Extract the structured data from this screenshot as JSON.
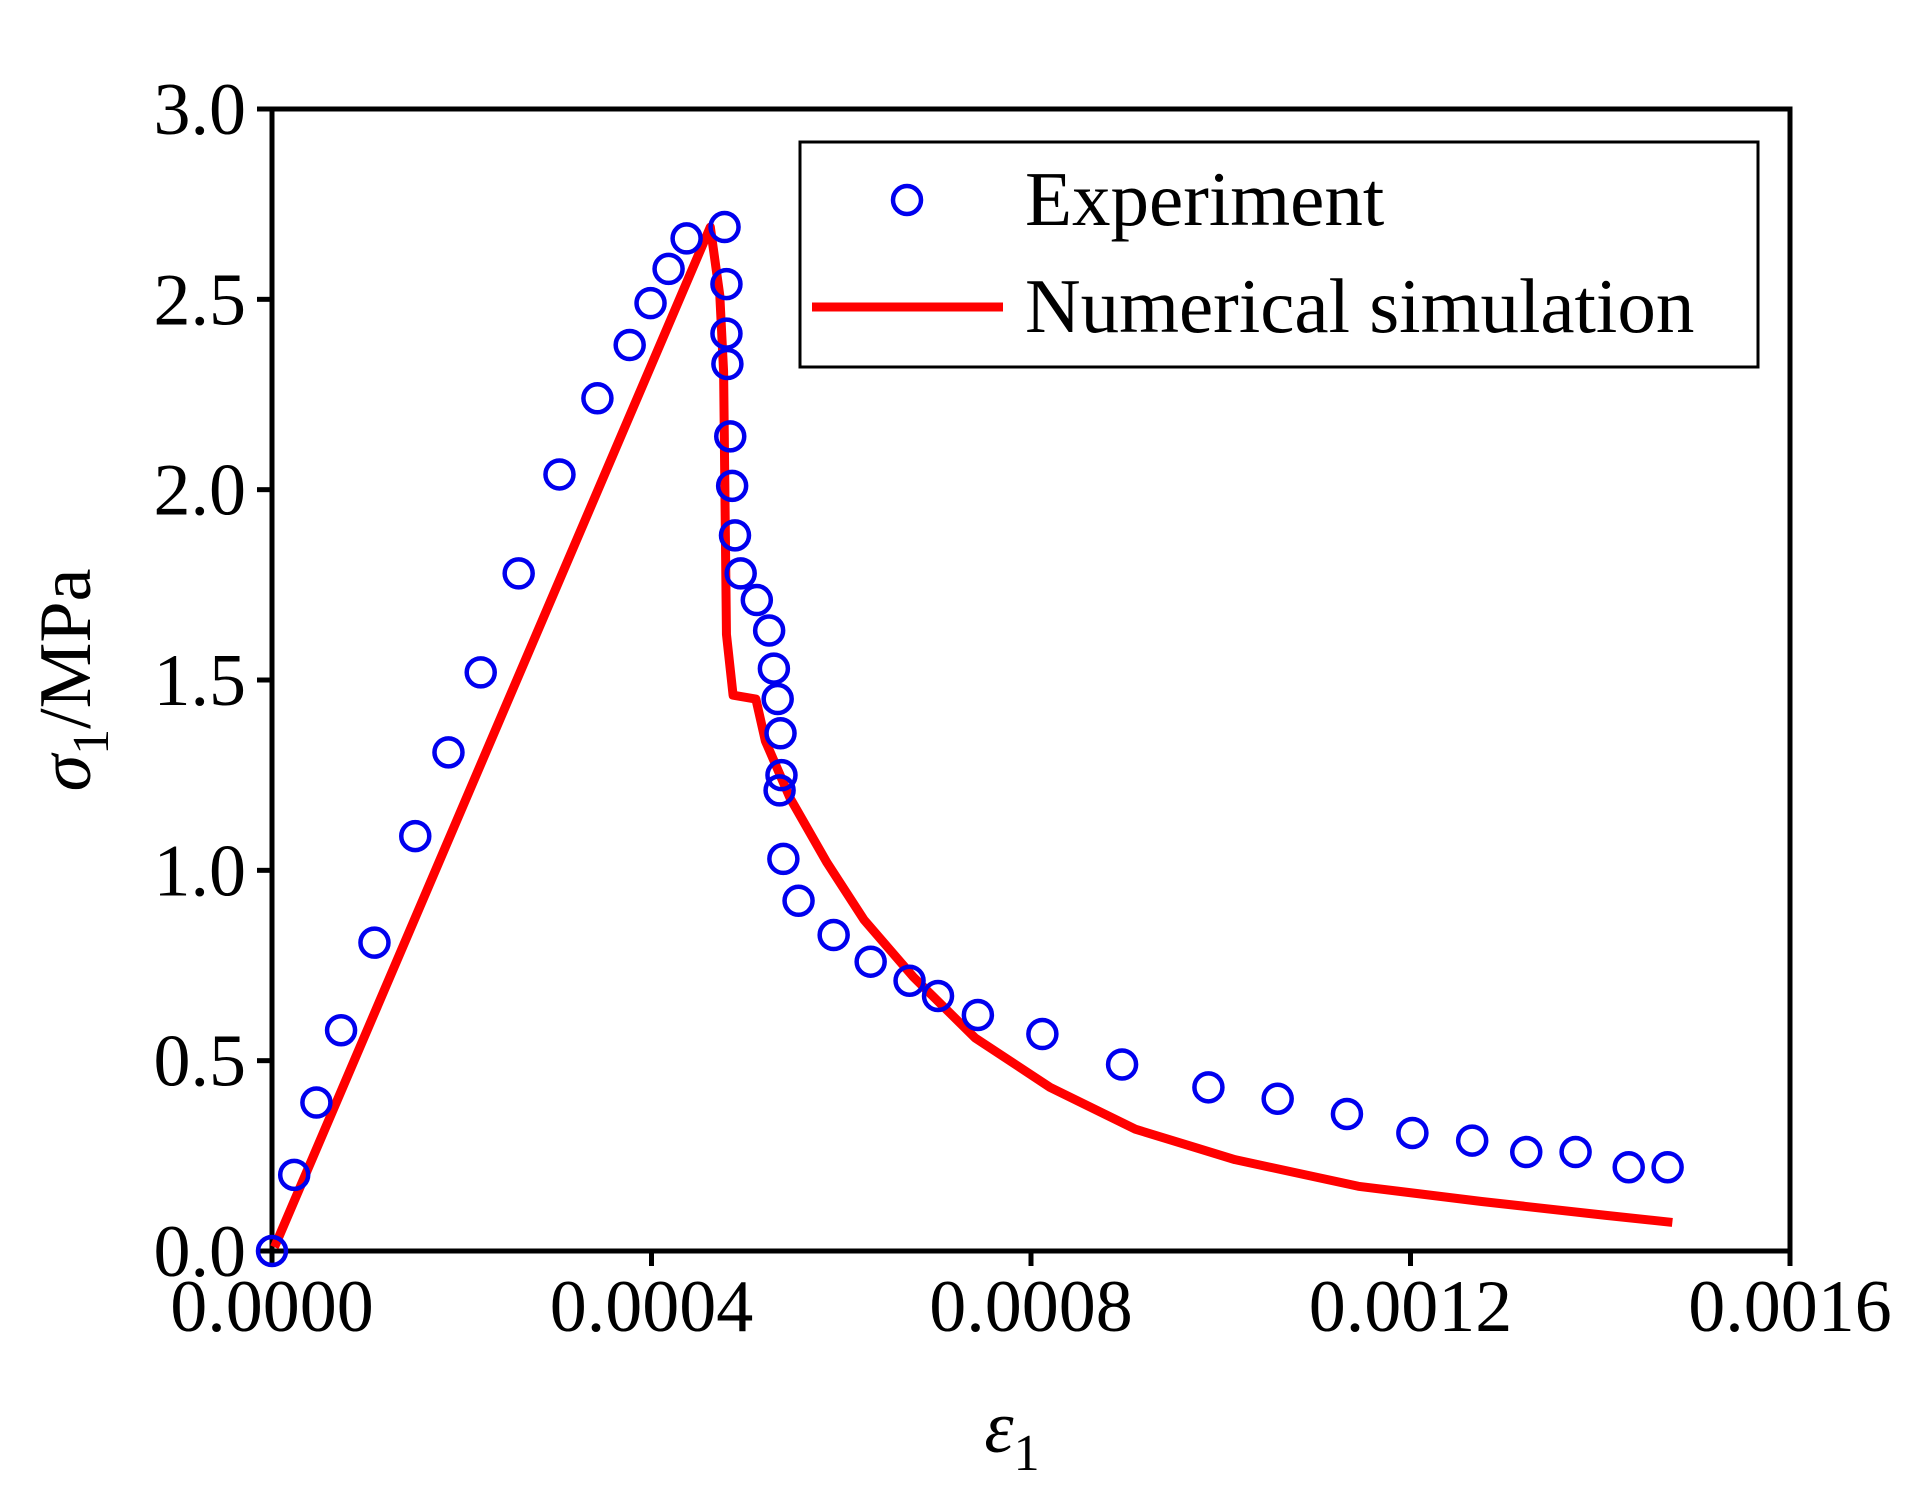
{
  "chart_data": {
    "type": "scatter_line",
    "x_label": {
      "symbol": "ε",
      "subscript": "1"
    },
    "y_label": {
      "symbol": "σ",
      "subscript": "1",
      "unit": "/MPa"
    },
    "xlim": [
      0,
      0.0016
    ],
    "ylim": [
      0,
      3.0
    ],
    "xticks": [
      {
        "value": 0,
        "label": "0.0000"
      },
      {
        "value": 0.0004,
        "label": "0.0004"
      },
      {
        "value": 0.0008,
        "label": "0.0008"
      },
      {
        "value": 0.0012,
        "label": "0.0012"
      },
      {
        "value": 0.0016,
        "label": "0.0016"
      }
    ],
    "yticks": [
      {
        "value": 0,
        "label": "0.0"
      },
      0.5,
      {
        "value": 1,
        "label": "1.0"
      },
      1.5,
      {
        "value": 2,
        "label": "2.0"
      },
      2.5,
      {
        "value": 3,
        "label": "3.0"
      }
    ],
    "legend": "upper right",
    "series": [
      {
        "name": "Experiment",
        "kind": "marker",
        "color": "#0000ee",
        "x": [
          0,
          2.34e-05,
          4.68e-05,
          7.28e-05,
          0.000108,
          0.000151,
          0.000186,
          0.00022,
          0.00026,
          0.000303,
          0.000343,
          0.000377,
          0.000399,
          0.000418,
          0.000437,
          0.000477,
          0.000479,
          0.000479,
          0.00048,
          0.000483,
          0.000485,
          0.000488,
          0.000494,
          0.000511,
          0.000524,
          0.000529,
          0.000533,
          0.000536,
          0.000537,
          0.000535,
          0.000539,
          0.000555,
          0.000592,
          0.000631,
          0.000672,
          0.000702,
          0.000744,
          0.000812,
          0.000896,
          0.000987,
          0.00106,
          0.001133,
          0.001202,
          0.001265,
          0.001322,
          0.001374,
          0.00143,
          0.001471
        ],
        "values": [
          0,
          0.2,
          0.39,
          0.58,
          0.81,
          1.09,
          1.31,
          1.52,
          1.78,
          2.04,
          2.24,
          2.38,
          2.49,
          2.58,
          2.66,
          2.69,
          2.54,
          2.41,
          2.33,
          2.14,
          2.01,
          1.88,
          1.78,
          1.71,
          1.63,
          1.53,
          1.45,
          1.36,
          1.25,
          1.21,
          1.03,
          0.92,
          0.83,
          0.76,
          0.71,
          0.67,
          0.62,
          0.57,
          0.49,
          0.43,
          0.4,
          0.36,
          0.31,
          0.29,
          0.26,
          0.26,
          0.22,
          0.22
        ]
      },
      {
        "name": "Numerical simulation",
        "kind": "line",
        "color": "#ff0000",
        "x": [
          2.6e-06,
          0.000462,
          0.000472,
          0.000476,
          0.000479,
          0.000486,
          0.00051,
          0.00052,
          0.000546,
          0.000585,
          0.000624,
          0.000676,
          0.000741,
          0.00082,
          0.00091,
          0.001015,
          0.001145,
          0.001275,
          0.001405,
          0.001476
        ],
        "values": [
          0.01,
          2.69,
          2.51,
          2.31,
          1.62,
          1.46,
          1.45,
          1.34,
          1.19,
          1.02,
          0.87,
          0.72,
          0.56,
          0.43,
          0.32,
          0.24,
          0.17,
          0.13,
          0.094,
          0.075
        ]
      }
    ]
  }
}
